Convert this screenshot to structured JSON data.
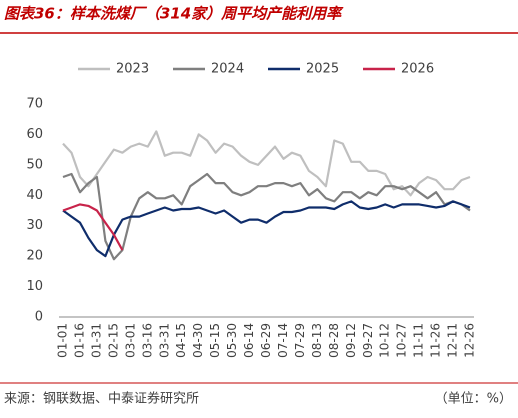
{
  "chart_data": {
    "type": "line",
    "title": "图表36：样本洗煤厂（314家）周平均产能利用率",
    "source": "来源：钢联数据、中泰证券研究所",
    "unit_note": "（单位：%）",
    "categories": [
      "01-01",
      null,
      "01-16",
      null,
      "01-31",
      null,
      "02-15",
      null,
      "03-01",
      null,
      "03-16",
      null,
      "03-31",
      null,
      "04-15",
      null,
      "04-30",
      null,
      "05-15",
      null,
      "05-30",
      null,
      "06-14",
      null,
      "06-29",
      null,
      "07-14",
      null,
      "07-29",
      null,
      "08-13",
      null,
      "08-28",
      null,
      "09-12",
      null,
      "09-27",
      null,
      "10-12",
      null,
      "10-27",
      null,
      "11-11",
      null,
      "11-26",
      null,
      "12-11",
      null,
      "12-26"
    ],
    "series": [
      {
        "name": "2023",
        "color": "#bfbfbf",
        "values": [
          57,
          54,
          46,
          43,
          47,
          51,
          55,
          54,
          56,
          57,
          56,
          61,
          53,
          54,
          54,
          53,
          60,
          58,
          54,
          57,
          56,
          53,
          51,
          50,
          53,
          56,
          52,
          54,
          53,
          48,
          46,
          43,
          58,
          57,
          51,
          51,
          48,
          48,
          47,
          42,
          43,
          40,
          44,
          46,
          45,
          42,
          42,
          45,
          46
        ]
      },
      {
        "name": "2024",
        "color": "#7f7f7f",
        "values": [
          46,
          47,
          41,
          44,
          46,
          25,
          19,
          22,
          33,
          39,
          41,
          39,
          39,
          40,
          37,
          43,
          45,
          47,
          44,
          44,
          41,
          40,
          41,
          43,
          43,
          44,
          44,
          43,
          44,
          40,
          42,
          39,
          38,
          41,
          41,
          39,
          41,
          40,
          43,
          43,
          42,
          43,
          41,
          39,
          41,
          37,
          38,
          37,
          35
        ]
      },
      {
        "name": "2025",
        "color": "#0f2d6b",
        "values": [
          35,
          33,
          31,
          26,
          22,
          20,
          27,
          32,
          33,
          33,
          34,
          35,
          36,
          35,
          35.5,
          35.5,
          36,
          35,
          34,
          35,
          33,
          31,
          32,
          32,
          31,
          33,
          34.5,
          34.5,
          35,
          36,
          36,
          36,
          35.5,
          37,
          38,
          36,
          35.5,
          36,
          37,
          36,
          37,
          37,
          37,
          36.5,
          36,
          36.5,
          38,
          37,
          36
        ]
      },
      {
        "name": "2026",
        "color": "#c8234a",
        "values": [
          35,
          36,
          37,
          36.5,
          35,
          31,
          27,
          22,
          null,
          null,
          null,
          null,
          null,
          null,
          null,
          null,
          null,
          null,
          null,
          null,
          null,
          null,
          null,
          null,
          null,
          null,
          null,
          null,
          null,
          null,
          null,
          null,
          null,
          null,
          null,
          null,
          null,
          null,
          null,
          null,
          null,
          null,
          null,
          null,
          null,
          null,
          null,
          null,
          null
        ]
      }
    ],
    "ylim": [
      0,
      70
    ],
    "yticks": [
      0,
      10,
      20,
      30,
      40,
      50,
      60,
      70
    ]
  }
}
